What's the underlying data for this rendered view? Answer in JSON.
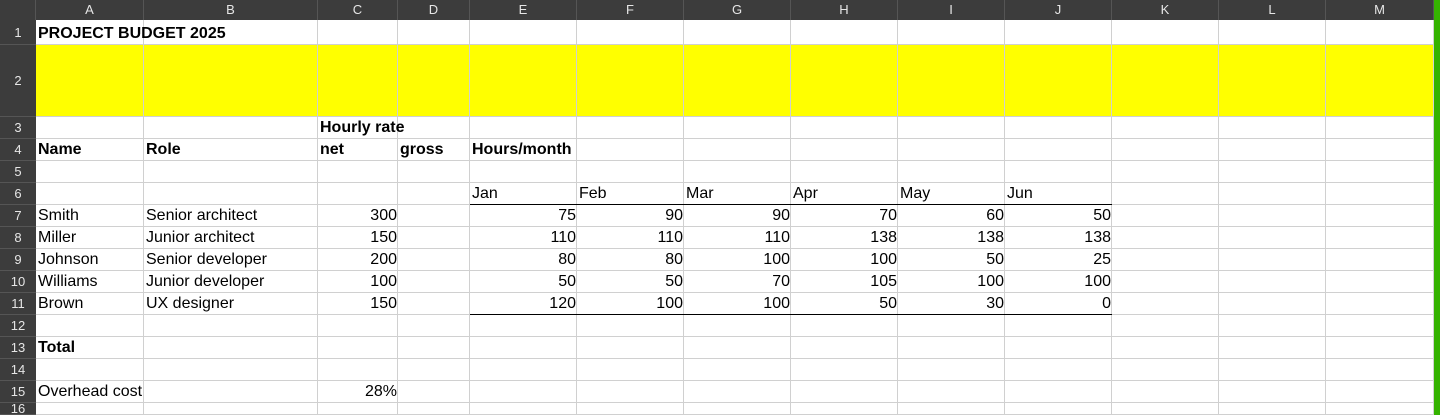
{
  "columns": [
    "A",
    "B",
    "C",
    "D",
    "E",
    "F",
    "G",
    "H",
    "I",
    "J",
    "K",
    "L",
    "M"
  ],
  "rows": [
    "1",
    "2",
    "3",
    "4",
    "5",
    "6",
    "7",
    "8",
    "9",
    "10",
    "11",
    "12",
    "13",
    "14",
    "15",
    "16"
  ],
  "cells": {
    "title": "PROJECT BUDGET 2025",
    "hourly_rate": "Hourly rate",
    "name_hdr": "Name",
    "role_hdr": "Role",
    "net_hdr": "net",
    "gross_hdr": "gross",
    "hours_hdr": "Hours/month",
    "months": [
      "Jan",
      "Feb",
      "Mar",
      "Apr",
      "May",
      "Jun"
    ],
    "staff": [
      {
        "name": "Smith",
        "role": "Senior architect",
        "rate": "300",
        "hours": [
          "75",
          "90",
          "90",
          "70",
          "60",
          "50"
        ]
      },
      {
        "name": "Miller",
        "role": "Junior architect",
        "rate": "150",
        "hours": [
          "110",
          "110",
          "110",
          "138",
          "138",
          "138"
        ]
      },
      {
        "name": "Johnson",
        "role": "Senior developer",
        "rate": "200",
        "hours": [
          "80",
          "80",
          "100",
          "100",
          "50",
          "25"
        ]
      },
      {
        "name": "Williams",
        "role": "Junior developer",
        "rate": "100",
        "hours": [
          "50",
          "50",
          "70",
          "105",
          "100",
          "100"
        ]
      },
      {
        "name": "Brown",
        "role": "UX designer",
        "rate": "150",
        "hours": [
          "120",
          "100",
          "100",
          "50",
          "30",
          "0"
        ]
      }
    ],
    "total": "Total",
    "overhead_label": "Overhead cost",
    "overhead_value": "28%"
  },
  "colors": {
    "highlight": "#ffff00",
    "header_bg": "#3c3c3c",
    "accent_bar": "#35b300"
  }
}
